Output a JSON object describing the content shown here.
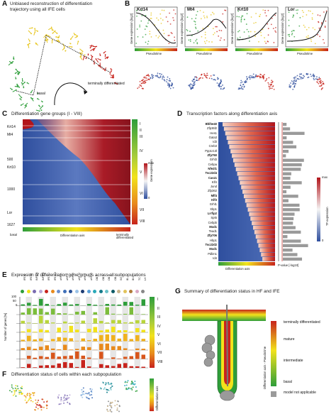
{
  "panel_a": {
    "letter": "A",
    "title": "Unbiased reconstruction of differentiation trajectory using all IFE cells",
    "label_basal": "basal",
    "label_terminal": "terminally differentiated"
  },
  "panel_b": {
    "letter": "B",
    "genes": [
      "Krt14",
      "Mt4",
      "Krt10",
      "Lor"
    ],
    "ylabel": "Gene expression [log2]",
    "xlabel": "Pseudotime"
  },
  "panel_c": {
    "letter": "C",
    "title": "Differentiation gene groups (I - VIII)",
    "gene_marks": [
      "Krt14",
      "Mt4",
      "500",
      "Krt10",
      "1000",
      "Lor",
      "1627"
    ],
    "groups": [
      "I",
      "II",
      "III",
      "IV",
      "V",
      "VI",
      "VII",
      "VIII"
    ],
    "x_left": "basal",
    "x_center": "Differentiation axis",
    "x_right": "terminally differentiated",
    "colorbar_label": "Gene expression",
    "colorbar_max": "max",
    "colorbar_min": "0"
  },
  "panel_d": {
    "letter": "D",
    "title": "Transcription factors along differentiation axis",
    "factors": [
      {
        "name": "Bhlhe40",
        "bold": true
      },
      {
        "name": "Zfp36l2",
        "bold": false
      },
      {
        "name": "Hes1",
        "bold": false
      },
      {
        "name": "Gata3",
        "bold": false
      },
      {
        "name": "Id3",
        "bold": false
      },
      {
        "name": "Creb3",
        "bold": false
      },
      {
        "name": "Ppp1r13l",
        "bold": false
      },
      {
        "name": "Zfp750",
        "bold": true
      },
      {
        "name": "Grhl3",
        "bold": false
      },
      {
        "name": "Cebpa",
        "bold": false
      },
      {
        "name": "Nfe2l1",
        "bold": true
      },
      {
        "name": "Tsc22d4",
        "bold": true
      },
      {
        "name": "Casz1",
        "bold": true
      },
      {
        "name": "Klf4",
        "bold": false
      },
      {
        "name": "Jund",
        "bold": false
      },
      {
        "name": "Zfp362",
        "bold": false
      },
      {
        "name": "Mlf4",
        "bold": true
      },
      {
        "name": "Klf3",
        "bold": true
      },
      {
        "name": "Grhl1",
        "bold": false
      },
      {
        "name": "Xbp1",
        "bold": false
      },
      {
        "name": "Lrrfip2",
        "bold": true
      },
      {
        "name": "Spt5",
        "bold": false
      },
      {
        "name": "Cebpb",
        "bold": false
      },
      {
        "name": "Mxd1",
        "bold": true
      },
      {
        "name": "Tead1",
        "bold": false
      },
      {
        "name": "Zfp706",
        "bold": true
      },
      {
        "name": "Hbp1",
        "bold": false
      },
      {
        "name": "Tsc22d2",
        "bold": true
      },
      {
        "name": "Mxd1",
        "bold": true
      },
      {
        "name": "Pdlim1",
        "bold": false
      },
      {
        "name": "Id4",
        "bold": false
      }
    ],
    "x_center": "Differentiation axis",
    "pvalue_label": "P-value [-log10]",
    "colorbar_label": "TF expression",
    "colorbar_max": "max",
    "colorbar_min": "0"
  },
  "panel_e": {
    "letter": "E",
    "title": "Expression of differentiation gene groups across all subpopulations",
    "ylabel": "Number of genes [%]",
    "columns": [
      "IFE B",
      "IFE DI",
      "INFU B",
      "INFU C",
      "IFE K I",
      "IFE K II",
      "uHF I",
      "uHF II",
      "uHF III",
      "uHF IV",
      "uHF V",
      "uHF VI",
      "OB I",
      "OB II",
      "OB III",
      "OB IV",
      "SG",
      "IB",
      "IB II",
      "TC",
      "LH"
    ],
    "tick_100": "100",
    "tick_50": "50",
    "tick_0": "0",
    "groups": [
      "I",
      "II",
      "III",
      "IV",
      "V",
      "VI",
      "VII",
      "VIII"
    ]
  },
  "panel_f": {
    "letter": "F",
    "title": "Differentiation status of cells within each subpopulation",
    "colorbar_label": "Differentiation axis"
  },
  "panel_g": {
    "letter": "G",
    "title": "Summary of differentiation status in HF and IFE",
    "legend_terminal": "terminally differentiated",
    "legend_mature": "mature",
    "legend_intermediate": "intermediate",
    "legend_basal": "basal",
    "legend_na": "model not applicable",
    "axis_label": "Differentiation axis - Pseudotime"
  },
  "colors": {
    "gradient_green": "#2e9e3a",
    "gradient_yellow": "#f2e21b",
    "gradient_red": "#c7231c",
    "heat_blue": "#2f4f9e",
    "heat_white": "#f4f4f4",
    "heat_red": "#b2151b",
    "grey": "#9a9a9a"
  }
}
